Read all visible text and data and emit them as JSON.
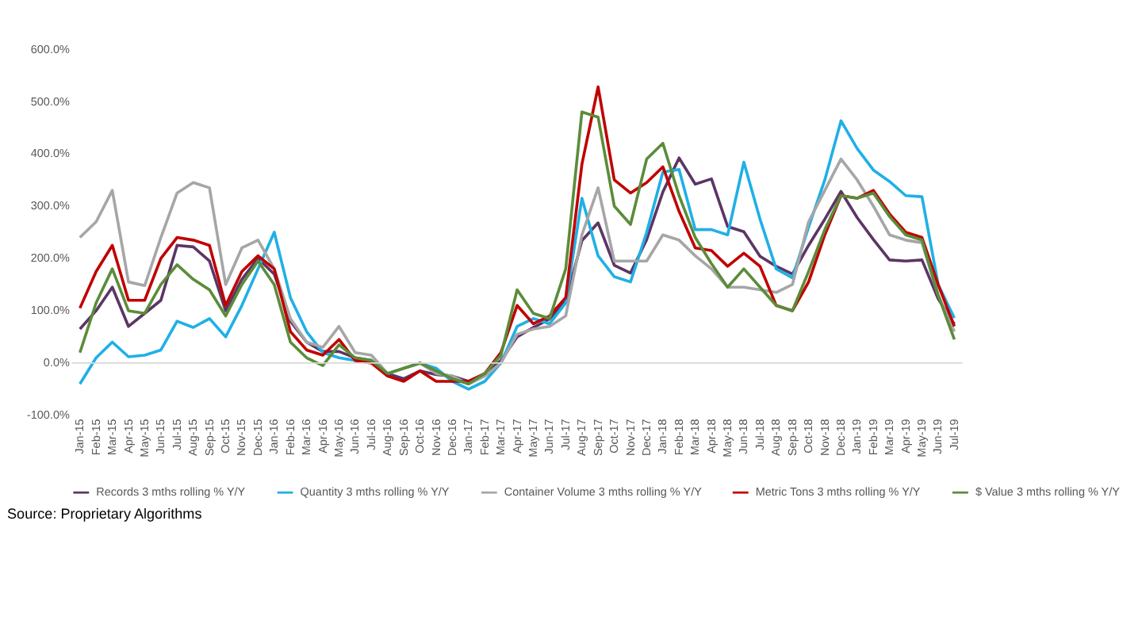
{
  "chart_data": {
    "type": "line",
    "categories": [
      "Jan-15",
      "Feb-15",
      "Mar-15",
      "Apr-15",
      "May-15",
      "Jun-15",
      "Jul-15",
      "Aug-15",
      "Sep-15",
      "Oct-15",
      "Nov-15",
      "Dec-15",
      "Jan-16",
      "Feb-16",
      "Mar-16",
      "Apr-16",
      "May-16",
      "Jun-16",
      "Jul-16",
      "Aug-16",
      "Sep-16",
      "Oct-16",
      "Nov-16",
      "Dec-16",
      "Jan-17",
      "Feb-17",
      "Mar-17",
      "Apr-17",
      "May-17",
      "Jun-17",
      "Jul-17",
      "Aug-17",
      "Sep-17",
      "Oct-17",
      "Nov-17",
      "Dec-17",
      "Jan-18",
      "Feb-18",
      "Mar-18",
      "Apr-18",
      "May-18",
      "Jun-18",
      "Jul-18",
      "Aug-18",
      "Sep-18",
      "Oct-18",
      "Nov-18",
      "Dec-18",
      "Jan-19",
      "Feb-19",
      "Mar-19",
      "Apr-19",
      "May-19",
      "Jun-19",
      "Jul-19"
    ],
    "series": [
      {
        "name": "Records 3 mths rolling % Y/Y",
        "color": "#5c3566",
        "values": [
          65,
          100,
          145,
          70,
          95,
          120,
          225,
          222,
          195,
          100,
          160,
          200,
          170,
          80,
          40,
          22,
          22,
          10,
          5,
          -20,
          -30,
          -15,
          -22,
          -25,
          -35,
          -22,
          5,
          50,
          68,
          84,
          118,
          234,
          268,
          187,
          172,
          236,
          327,
          392,
          342,
          352,
          261,
          251,
          204,
          185,
          170,
          225,
          275,
          328,
          278,
          236,
          197,
          195,
          197,
          123,
          74
        ]
      },
      {
        "name": "Quantity 3 mths rolling % Y/Y",
        "color": "#1fb0e6",
        "values": [
          -40,
          10,
          40,
          12,
          15,
          25,
          80,
          68,
          85,
          50,
          110,
          180,
          250,
          125,
          60,
          20,
          10,
          5,
          5,
          -20,
          -10,
          0,
          -10,
          -35,
          -50,
          -35,
          0,
          70,
          85,
          75,
          115,
          315,
          205,
          165,
          155,
          250,
          365,
          370,
          255,
          255,
          245,
          384,
          275,
          180,
          163,
          260,
          350,
          463,
          410,
          369,
          347,
          320,
          318,
          150,
          86
        ]
      },
      {
        "name": "Container Volume 3 mths rolling % Y/Y",
        "color": "#a6a6a6",
        "values": [
          240,
          270,
          330,
          155,
          148,
          240,
          325,
          345,
          335,
          150,
          220,
          235,
          180,
          85,
          40,
          30,
          70,
          20,
          15,
          -20,
          -10,
          0,
          -20,
          -25,
          -40,
          -25,
          0,
          55,
          65,
          70,
          90,
          245,
          335,
          195,
          195,
          195,
          245,
          235,
          205,
          180,
          145,
          145,
          140,
          135,
          150,
          270,
          330,
          390,
          350,
          300,
          245,
          235,
          230,
          130,
          60
        ]
      },
      {
        "name": "Metric Tons 3 mths rolling % Y/Y",
        "color": "#c00000",
        "values": [
          105,
          175,
          225,
          120,
          120,
          200,
          240,
          235,
          225,
          110,
          175,
          205,
          180,
          60,
          25,
          15,
          45,
          5,
          0,
          -25,
          -35,
          -15,
          -35,
          -35,
          -35,
          -20,
          20,
          110,
          75,
          90,
          125,
          380,
          528,
          350,
          325,
          345,
          375,
          290,
          220,
          215,
          185,
          210,
          185,
          110,
          100,
          155,
          245,
          320,
          315,
          330,
          285,
          250,
          240,
          150,
          70
        ]
      },
      {
        "name": "$ Value 3 mths rolling % Y/Y",
        "color": "#5b8c3a",
        "values": [
          20,
          115,
          180,
          100,
          95,
          150,
          188,
          160,
          140,
          90,
          150,
          195,
          150,
          40,
          10,
          -5,
          35,
          10,
          5,
          -20,
          -10,
          0,
          -15,
          -30,
          -40,
          -20,
          15,
          140,
          95,
          85,
          180,
          480,
          470,
          300,
          265,
          390,
          420,
          320,
          240,
          190,
          145,
          180,
          145,
          110,
          100,
          175,
          255,
          320,
          315,
          325,
          280,
          245,
          235,
          130,
          45
        ]
      }
    ],
    "ylim": [
      -100,
      600
    ],
    "yticks": [
      {
        "value": -100,
        "label": "-100.0%"
      },
      {
        "value": 0,
        "label": "0.0%"
      },
      {
        "value": 100,
        "label": "100.0%"
      },
      {
        "value": 200,
        "label": "200.0%"
      },
      {
        "value": 300,
        "label": "300.0%"
      },
      {
        "value": 400,
        "label": "400.0%"
      },
      {
        "value": 500,
        "label": "500.0%"
      },
      {
        "value": 600,
        "label": "600.0%"
      }
    ],
    "ref_lines": [
      {
        "axis": "y",
        "value": 0,
        "color": "#d9d9d9"
      }
    ],
    "grid": false,
    "legend": "bottom",
    "marker": "none",
    "line_style": "solid",
    "annotations": [
      "Source: Proprietary Algorithms"
    ]
  }
}
